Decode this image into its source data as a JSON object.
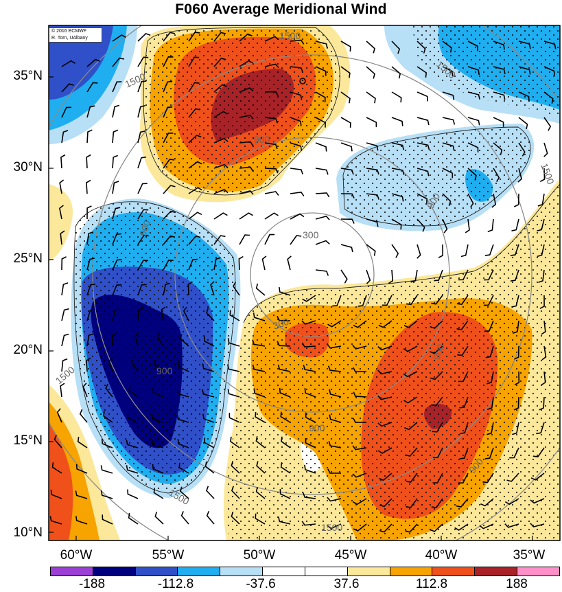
{
  "title": "F060 Average Meridional Wind",
  "credit": {
    "line1": "© 2016 ECMWF",
    "line2": "R. Torn, UAlbany"
  },
  "lat_labels": [
    "35°N",
    "30°N",
    "25°N",
    "20°N",
    "15°N",
    "10°N"
  ],
  "lon_labels": [
    "60°W",
    "55°W",
    "50°W",
    "45°W",
    "40°W",
    "35°W"
  ],
  "colorbar": {
    "colors": [
      "#9b3fd6",
      "#00007f",
      "#2f50c8",
      "#1faef0",
      "#b7dff6",
      "#ffffff",
      "#ffffff",
      "#fbe89a",
      "#f7a300",
      "#f0501a",
      "#a82227",
      "#ff8fc8"
    ],
    "labels": [
      "-188",
      "-112.8",
      "-37.6",
      "37.6",
      "112.8",
      "188"
    ]
  },
  "contour_labels": [
    "1500",
    "1500",
    "900",
    "300",
    "900",
    "900",
    "1500",
    "1500",
    "900",
    "900",
    "900",
    "300",
    "1500",
    "1500",
    "1500",
    "900"
  ],
  "legend_colors": {
    "strong_south": "#00007f",
    "south": "#2f50c8",
    "moderate_south": "#1faef0",
    "weak_south": "#b7dff6",
    "weak_north": "#fbe89a",
    "moderate_north": "#f7a300",
    "north": "#f0501a",
    "strong_north": "#a82227"
  }
}
